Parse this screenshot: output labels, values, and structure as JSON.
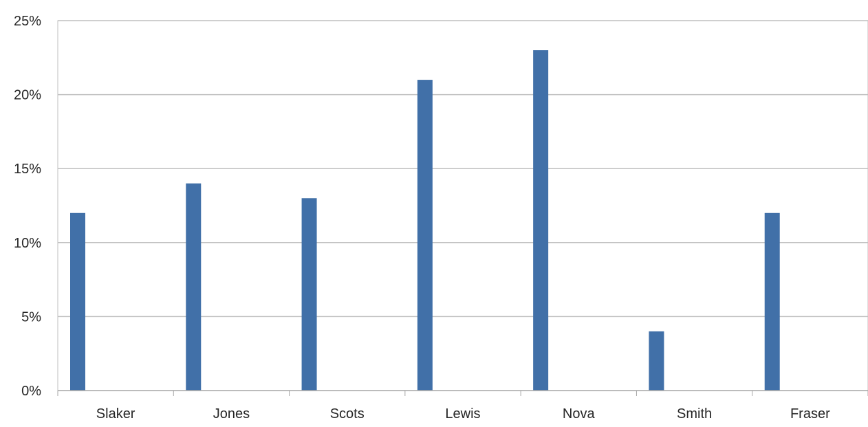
{
  "chart_data": {
    "type": "bar",
    "title": "",
    "xlabel": "",
    "ylabel": "",
    "categories": [
      "Slaker",
      "Jones",
      "Scots",
      "Lewis",
      "Nova",
      "Smith",
      "Fraser"
    ],
    "series": [
      {
        "values": [
          12,
          14,
          13,
          21,
          23,
          4,
          12
        ]
      }
    ],
    "ylim": [
      0,
      25
    ],
    "yticks": [
      0,
      5,
      10,
      15,
      20,
      25
    ],
    "ytick_labels": [
      "0%",
      "5%",
      "10%",
      "15%",
      "20%",
      "25%"
    ],
    "grid": true,
    "legend": "none",
    "bar_color": "#4170A8",
    "grid_color": "#BFBFBF",
    "axis_color": "#A6A6A6"
  }
}
